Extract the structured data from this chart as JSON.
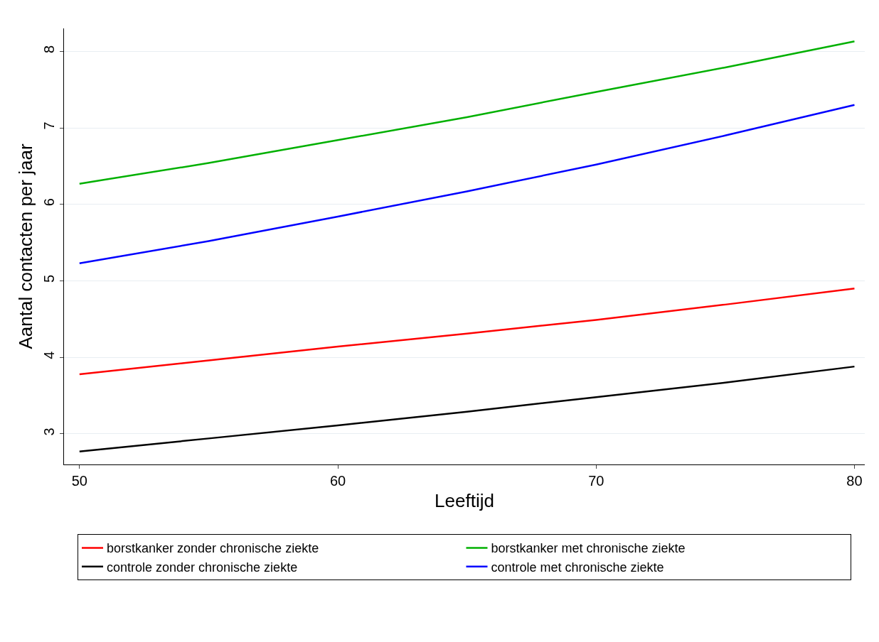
{
  "chart_data": {
    "type": "line",
    "xlabel": "Leeftijd",
    "ylabel": "Aantal contacten per jaar",
    "x": [
      50,
      55,
      60,
      65,
      70,
      75,
      80
    ],
    "series": [
      {
        "name": "borstkanker zonder chronische ziekte",
        "color": "#ff0000",
        "values": [
          3.78,
          3.96,
          4.14,
          4.31,
          4.49,
          4.69,
          4.9
        ]
      },
      {
        "name": "borstkanker met chronische ziekte",
        "color": "#00b000",
        "values": [
          6.27,
          6.54,
          6.84,
          7.14,
          7.47,
          7.79,
          8.13
        ]
      },
      {
        "name": "controle zonder chronische ziekte",
        "color": "#000000",
        "values": [
          2.77,
          2.94,
          3.11,
          3.29,
          3.48,
          3.67,
          3.88
        ]
      },
      {
        "name": "controle met chronische ziekte",
        "color": "#0000ff",
        "values": [
          5.23,
          5.52,
          5.84,
          6.17,
          6.52,
          6.9,
          7.3
        ]
      }
    ],
    "xlim": [
      49.4,
      80.4
    ],
    "xticks": [
      50,
      60,
      70,
      80
    ],
    "ylim": [
      2.6,
      8.3
    ],
    "yticks": [
      3,
      4,
      5,
      6,
      7,
      8
    ],
    "grid": "y",
    "legend": "bottom",
    "marker": "none",
    "line_style": "solid"
  }
}
